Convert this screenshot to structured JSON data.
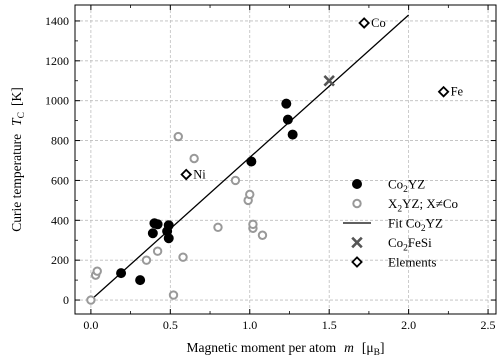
{
  "chart_data": {
    "type": "scatter",
    "xlabel": "Magnetic moment per atom",
    "xlabel_symbol": "m",
    "xlabel_unit_prefix": "[μ",
    "xlabel_unit_sub": "B",
    "xlabel_unit_suffix": "]",
    "ylabel": "Curie temperature",
    "ylabel_symbol": "T",
    "ylabel_sub": "C",
    "ylabel_unit": "[K]",
    "xlim": [
      -0.1,
      2.55
    ],
    "ylim": [
      -70,
      1480
    ],
    "xticks": [
      0.0,
      0.5,
      1.0,
      1.5,
      2.0,
      2.5
    ],
    "xtick_labels": [
      "0.0",
      "0.5",
      "1.0",
      "1.5",
      "2.0",
      "2.5"
    ],
    "yticks": [
      0,
      200,
      400,
      600,
      800,
      1000,
      1200,
      1400
    ],
    "ytick_labels": [
      "0",
      "200",
      "400",
      "600",
      "800",
      "1000",
      "1200",
      "1400"
    ],
    "grid": true,
    "legend_position": "right",
    "colors": {
      "co2yz": "#000000",
      "x2yz": "#999999",
      "fit": "#000000",
      "co2fesi": "#555555",
      "elements": "#000000"
    },
    "series": [
      {
        "key": "co2yz",
        "name": "Co2YZ",
        "legend": {
          "base": "Co",
          "sub": "2",
          "rest": "YZ"
        },
        "marker": "filled-circle",
        "points": [
          {
            "x": 0.19,
            "y": 135
          },
          {
            "x": 0.31,
            "y": 100
          },
          {
            "x": 0.39,
            "y": 335
          },
          {
            "x": 0.4,
            "y": 385
          },
          {
            "x": 0.42,
            "y": 380
          },
          {
            "x": 0.48,
            "y": 345
          },
          {
            "x": 0.49,
            "y": 375
          },
          {
            "x": 0.49,
            "y": 310
          },
          {
            "x": 1.01,
            "y": 695
          },
          {
            "x": 1.23,
            "y": 985
          },
          {
            "x": 1.24,
            "y": 905
          },
          {
            "x": 1.27,
            "y": 830
          }
        ]
      },
      {
        "key": "x2yz",
        "name": "X2YZ; X≠Co",
        "legend": {
          "base": "X",
          "sub": "2",
          "rest": "YZ; X≠Co"
        },
        "marker": "open-circle",
        "points": [
          {
            "x": 0.0,
            "y": 0
          },
          {
            "x": 0.03,
            "y": 125
          },
          {
            "x": 0.04,
            "y": 145
          },
          {
            "x": 0.35,
            "y": 200
          },
          {
            "x": 0.42,
            "y": 245
          },
          {
            "x": 0.52,
            "y": 25
          },
          {
            "x": 0.55,
            "y": 820
          },
          {
            "x": 0.58,
            "y": 215
          },
          {
            "x": 0.65,
            "y": 710
          },
          {
            "x": 0.8,
            "y": 365
          },
          {
            "x": 0.91,
            "y": 600
          },
          {
            "x": 0.99,
            "y": 500
          },
          {
            "x": 1.0,
            "y": 530
          },
          {
            "x": 1.02,
            "y": 360
          },
          {
            "x": 1.02,
            "y": 380
          },
          {
            "x": 1.08,
            "y": 325
          }
        ]
      },
      {
        "key": "fit",
        "name": "Fit Co2YZ",
        "legend": {
          "base": "Fit Co",
          "sub": "2",
          "rest": "YZ"
        },
        "marker": "line",
        "points": [
          {
            "x": 0.0,
            "y": 0
          },
          {
            "x": 2.0,
            "y": 1430
          }
        ]
      },
      {
        "key": "co2fesi",
        "name": "Co2FeSi",
        "legend": {
          "base": "Co",
          "sub": "2",
          "rest": "FeSi"
        },
        "marker": "cross",
        "points": [
          {
            "x": 1.5,
            "y": 1100
          }
        ]
      },
      {
        "key": "elements",
        "name": "Elements",
        "legend": {
          "base": "Elements",
          "sub": "",
          "rest": ""
        },
        "marker": "open-diamond",
        "points": [
          {
            "x": 0.6,
            "y": 630,
            "label": "Ni",
            "label_side": "right"
          },
          {
            "x": 1.72,
            "y": 1390,
            "label": "Co",
            "label_side": "right"
          },
          {
            "x": 2.22,
            "y": 1045,
            "label": "Fe",
            "label_side": "right"
          }
        ]
      }
    ]
  }
}
